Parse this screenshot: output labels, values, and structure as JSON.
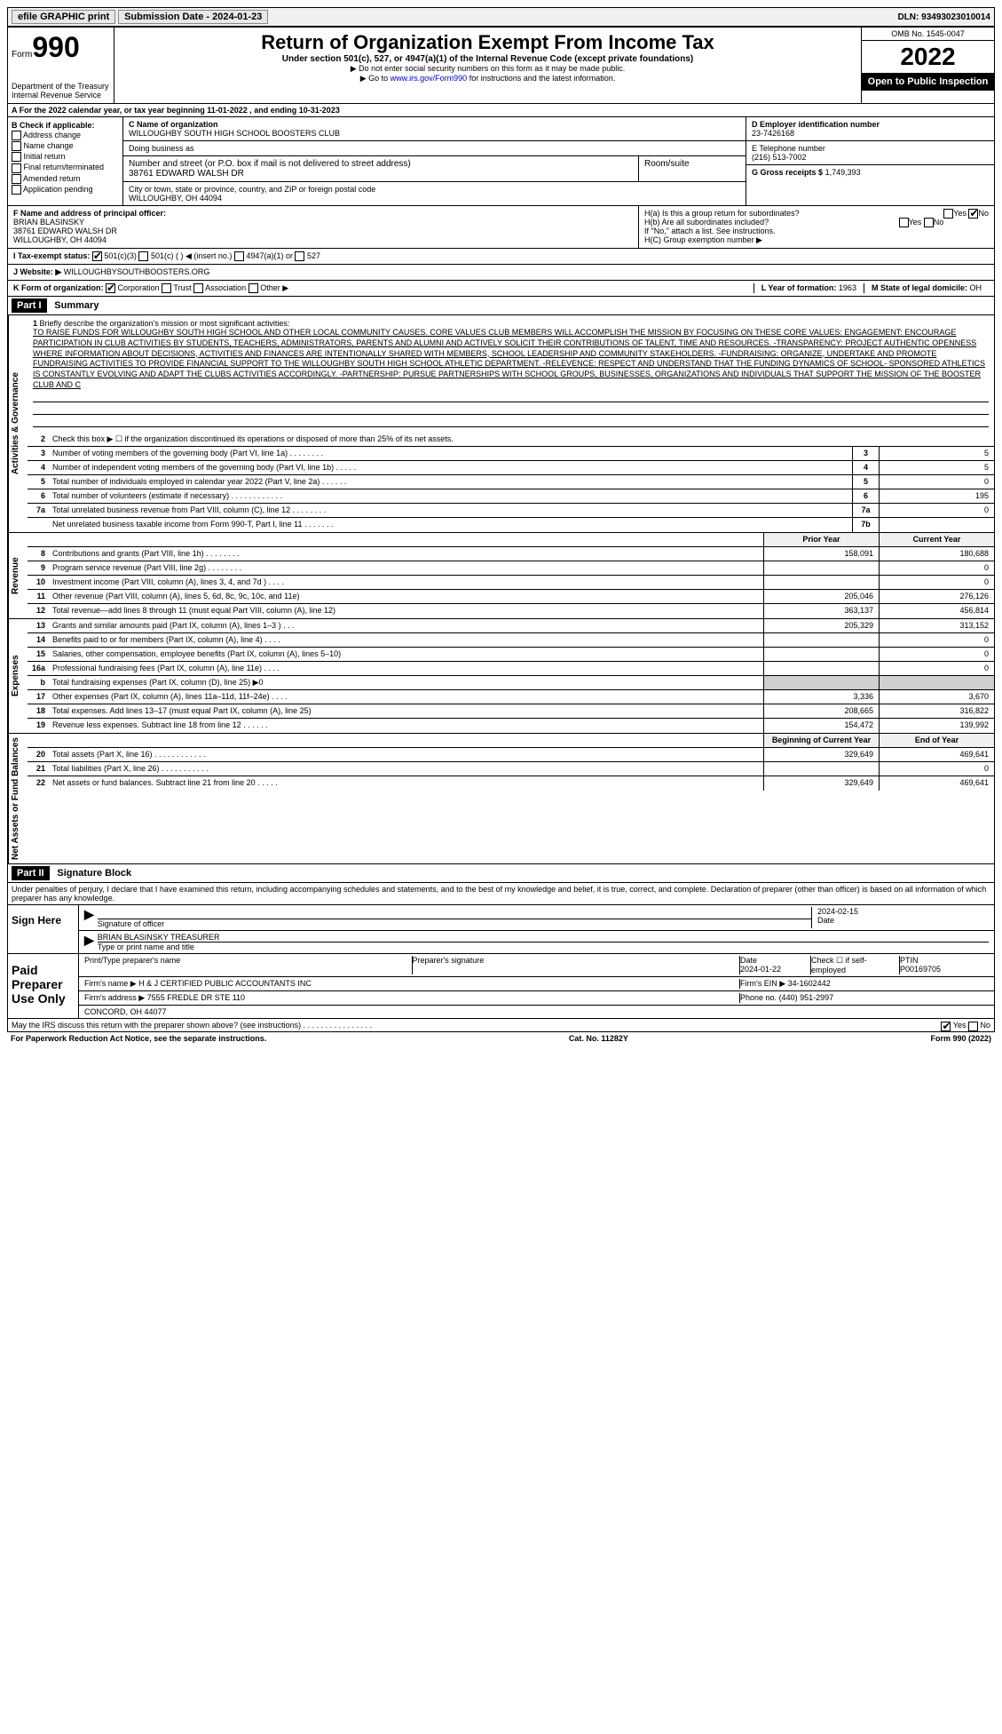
{
  "topbar": {
    "efile": "efile GRAPHIC print",
    "submission_label": "Submission Date - 2024-01-23",
    "dln": "DLN: 93493023010014"
  },
  "header": {
    "form_label": "Form",
    "form_num": "990",
    "dept": "Department of the Treasury\nInternal Revenue Service",
    "title": "Return of Organization Exempt From Income Tax",
    "subtitle": "Under section 501(c), 527, or 4947(a)(1) of the Internal Revenue Code (except private foundations)",
    "note1": "▶ Do not enter social security numbers on this form as it may be made public.",
    "note2_pre": "▶ Go to ",
    "note2_link": "www.irs.gov/Form990",
    "note2_post": " for instructions and the latest information.",
    "omb": "OMB No. 1545-0047",
    "year": "2022",
    "inspect": "Open to Public Inspection"
  },
  "row_a": "A For the 2022 calendar year, or tax year beginning 11-01-2022   , and ending 10-31-2023",
  "col_b": {
    "label": "B Check if applicable:",
    "items": [
      "Address change",
      "Name change",
      "Initial return",
      "Final return/terminated",
      "Amended return",
      "Application pending"
    ]
  },
  "col_c": {
    "name_label": "C Name of organization",
    "name": "WILLOUGHBY SOUTH HIGH SCHOOL BOOSTERS CLUB",
    "dba_label": "Doing business as",
    "dba": "",
    "addr_label": "Number and street (or P.O. box if mail is not delivered to street address)",
    "addr": "38761 EDWARD WALSH DR",
    "room_label": "Room/suite",
    "room": "",
    "city_label": "City or town, state or province, country, and ZIP or foreign postal code",
    "city": "WILLOUGHBY, OH  44094"
  },
  "col_right": {
    "d_label": "D Employer identification number",
    "d": "23-7426168",
    "e_label": "E Telephone number",
    "e": "(216) 513-7002",
    "g_label": "G Gross receipts $",
    "g": "1,749,393"
  },
  "row_f": {
    "label": "F  Name and address of principal officer:",
    "name": "BRIAN BLASINSKY",
    "addr1": "38761 EDWARD WALSH DR",
    "addr2": "WILLOUGHBY, OH  44094"
  },
  "row_h": {
    "ha_label": "H(a)  Is this a group return for subordinates?",
    "hb_label": "H(b)  Are all subordinates included?",
    "h_note": "If \"No,\" attach a list. See instructions.",
    "hc_label": "H(C)  Group exemption number ▶"
  },
  "row_i": {
    "label": "I  Tax-exempt status:",
    "opts": [
      "501(c)(3)",
      "501(c) (  ) ◀ (insert no.)",
      "4947(a)(1) or",
      "527"
    ]
  },
  "row_j": {
    "label": "J  Website: ▶",
    "val": "WILLOUGHBYSOUTHBOOSTERS.ORG"
  },
  "row_k": {
    "label": "K Form of organization:",
    "opts": [
      "Corporation",
      "Trust",
      "Association",
      "Other ▶"
    ]
  },
  "row_l": {
    "label": "L Year of formation:",
    "val": "1963"
  },
  "row_m": {
    "label": "M State of legal domicile:",
    "val": "OH"
  },
  "part1": {
    "head": "Part I",
    "title": "Summary",
    "line1_label": "Briefly describe the organization's mission or most significant activities:",
    "line1_text": "TO RAISE FUNDS FOR WILLOUGHBY SOUTH HIGH SCHOOL AND OTHER LOCAL COMMUNITY CAUSES. CORE VALUES CLUB MEMBERS WILL ACCOMPLISH THE MISSION BY FOCUSING ON THESE CORE VALUES: ENGAGEMENT: ENCOURAGE PARTICIPATION IN CLUB ACTIVITIES BY STUDENTS, TEACHERS, ADMINISTRATORS, PARENTS AND ALUMNI AND ACTIVELY SOLICIT THEIR CONTRIBUTIONS OF TALENT, TIME AND RESOURCES. -TRANSPARENCY: PROJECT AUTHENTIC OPENNESS WHERE INFORMATION ABOUT DECISIONS, ACTIVITIES AND FINANCES ARE INTENTIONALLY SHARED WITH MEMBERS, SCHOOL LEADERSHIP AND COMMUNITY STAKEHOLDERS. -FUNDRAISING: ORGANIZE, UNDERTAKE AND PROMOTE FUNDRAISING ACTIVITIES TO PROVIDE FINANCIAL SUPPORT TO THE WILLOUGHBY SOUTH HIGH SCHOOL ATHLETIC DEPARTMENT. -RELEVENCE: RESPECT AND UNDERSTAND THAT THE FUNDING DYNAMICS OF SCHOOL- SPONSORED ATHLETICS IS CONSTANTLY EVOLVING AND ADAPT THE CLUBS ACTIVITIES ACCORDINGLY. -PARTNERSHIP: PURSUE PARTNERSHIPS WITH SCHOOL GROUPS, BUSINESSES, ORGANIZATIONS AND INDIVIDUALS THAT SUPPORT THE MISSION OF THE BOOSTER CLUB AND C",
    "line2": "Check this box ▶ ☐ if the organization discontinued its operations or disposed of more than 25% of its net assets.",
    "vert_gov": "Activities & Governance",
    "vert_rev": "Revenue",
    "vert_exp": "Expenses",
    "vert_net": "Net Assets or Fund Balances",
    "rows_gov": [
      {
        "n": "3",
        "d": "Number of voting members of the governing body (Part VI, line 1a)  .  .  .  .  .  .  .  .",
        "box": "3",
        "v": "5"
      },
      {
        "n": "4",
        "d": "Number of independent voting members of the governing body (Part VI, line 1b)   .  .  .  .  .",
        "box": "4",
        "v": "5"
      },
      {
        "n": "5",
        "d": "Total number of individuals employed in calendar year 2022 (Part V, line 2a)   .  .  .  .  .  .",
        "box": "5",
        "v": "0"
      },
      {
        "n": "6",
        "d": "Total number of volunteers (estimate if necessary)  .  .  .  .  .  .  .  .  .  .  .  .",
        "box": "6",
        "v": "195"
      },
      {
        "n": "7a",
        "d": "Total unrelated business revenue from Part VIII, column (C), line 12   .  .  .  .  .  .  .  .",
        "box": "7a",
        "v": "0"
      },
      {
        "n": "",
        "d": "Net unrelated business taxable income from Form 990-T, Part I, line 11   .  .  .  .  .  .  .",
        "box": "7b",
        "v": ""
      }
    ],
    "col_prior": "Prior Year",
    "col_current": "Current Year",
    "rows_rev": [
      {
        "n": "8",
        "d": "Contributions and grants (Part VIII, line 1h)  .  .  .  .  .  .  .  .",
        "p": "158,091",
        "c": "180,688"
      },
      {
        "n": "9",
        "d": "Program service revenue (Part VIII, line 2g)   .  .  .  .  .  .  .  .",
        "p": "",
        "c": "0"
      },
      {
        "n": "10",
        "d": "Investment income (Part VIII, column (A), lines 3, 4, and 7d )   .  .  .  .",
        "p": "",
        "c": "0"
      },
      {
        "n": "11",
        "d": "Other revenue (Part VIII, column (A), lines 5, 6d, 8c, 9c, 10c, and 11e)",
        "p": "205,046",
        "c": "276,126"
      },
      {
        "n": "12",
        "d": "Total revenue—add lines 8 through 11 (must equal Part VIII, column (A), line 12)",
        "p": "363,137",
        "c": "456,814"
      }
    ],
    "rows_exp": [
      {
        "n": "13",
        "d": "Grants and similar amounts paid (Part IX, column (A), lines 1–3 )  .  .  .",
        "p": "205,329",
        "c": "313,152"
      },
      {
        "n": "14",
        "d": "Benefits paid to or for members (Part IX, column (A), line 4)  .  .  .  .",
        "p": "",
        "c": "0"
      },
      {
        "n": "15",
        "d": "Salaries, other compensation, employee benefits (Part IX, column (A), lines 5–10)",
        "p": "",
        "c": "0"
      },
      {
        "n": "16a",
        "d": "Professional fundraising fees (Part IX, column (A), line 11e)   .  .  .  .",
        "p": "",
        "c": "0"
      },
      {
        "n": "b",
        "d": "Total fundraising expenses (Part IX, column (D), line 25) ▶0",
        "p": "shade",
        "c": "shade"
      },
      {
        "n": "17",
        "d": "Other expenses (Part IX, column (A), lines 11a–11d, 11f–24e)   .  .  .  .",
        "p": "3,336",
        "c": "3,670"
      },
      {
        "n": "18",
        "d": "Total expenses. Add lines 13–17 (must equal Part IX, column (A), line 25)",
        "p": "208,665",
        "c": "316,822"
      },
      {
        "n": "19",
        "d": "Revenue less expenses. Subtract line 18 from line 12   .  .  .  .  .  .",
        "p": "154,472",
        "c": "139,992"
      }
    ],
    "col_begin": "Beginning of Current Year",
    "col_end": "End of Year",
    "rows_net": [
      {
        "n": "20",
        "d": "Total assets (Part X, line 16)  .  .  .  .  .  .  .  .  .  .  .  .",
        "p": "329,649",
        "c": "469,641"
      },
      {
        "n": "21",
        "d": "Total liabilities (Part X, line 26)   .  .  .  .  .  .  .  .  .  .  .",
        "p": "",
        "c": "0"
      },
      {
        "n": "22",
        "d": "Net assets or fund balances. Subtract line 21 from line 20   .  .  .  .  .",
        "p": "329,649",
        "c": "469,641"
      }
    ]
  },
  "part2": {
    "head": "Part II",
    "title": "Signature Block",
    "declaration": "Under penalties of perjury, I declare that I have examined this return, including accompanying schedules and statements, and to the best of my knowledge and belief, it is true, correct, and complete. Declaration of preparer (other than officer) is based on all information of which preparer has any knowledge.",
    "sign_here": "Sign Here",
    "sig_officer": "Signature of officer",
    "sig_date": "2024-02-15",
    "sig_date_label": "Date",
    "sig_name": "BRIAN BLASINSKY TREASURER",
    "sig_name_label": "Type or print name and title",
    "paid_label": "Paid Preparer Use Only",
    "prep_name_label": "Print/Type preparer's name",
    "prep_sig_label": "Preparer's signature",
    "prep_date_label": "Date",
    "prep_date": "2024-01-22",
    "prep_check_label": "Check ☐ if self-employed",
    "ptin_label": "PTIN",
    "ptin": "P00169705",
    "firm_name_label": "Firm's name    ▶",
    "firm_name": "H & J CERTIFIED PUBLIC ACCOUNTANTS INC",
    "firm_ein_label": "Firm's EIN ▶",
    "firm_ein": "34-1602442",
    "firm_addr_label": "Firm's address ▶",
    "firm_addr1": "7555 FREDLE DR STE 110",
    "firm_addr2": "CONCORD, OH  44077",
    "phone_label": "Phone no.",
    "phone": "(440) 951-2997",
    "may_irs": "May the IRS discuss this return with the preparer shown above? (see instructions)   .  .  .  .  .  .  .  .  .  .  .  .  .  .  .  ."
  },
  "footer": {
    "left": "For Paperwork Reduction Act Notice, see the separate instructions.",
    "mid": "Cat. No. 11282Y",
    "right": "Form 990 (2022)"
  }
}
